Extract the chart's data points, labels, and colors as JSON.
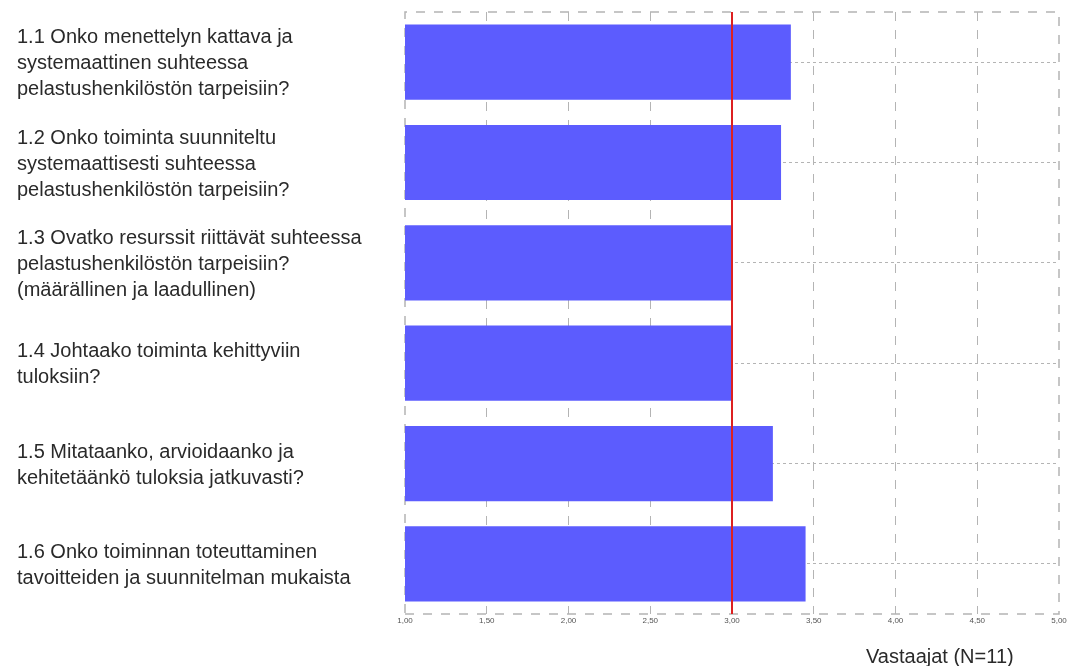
{
  "chart_data": {
    "type": "bar",
    "orientation": "horizontal",
    "categories": [
      "1.1 Onko menettelyn kattava ja systemaattinen suhteessa pelastushenkilöstön tarpeisiin?",
      "1.2 Onko toiminta suunniteltu systemaattisesti suhteessa pelastushenkilöstön tarpeisiin?",
      "1.3 Ovatko resurssit riittävät suhteessa pelastushenkilöstön tarpeisiin? (määrällinen ja laadullinen)",
      "1.4 Johtaako toiminta kehittyviin tuloksiin?",
      "1.5 Mitataanko, arvioidaanko ja kehitetäänkö tuloksia jatkuvasti?",
      "1.6 Onko toiminnan toteuttaminen tavoitteiden ja suunnitelman mukaista"
    ],
    "values": [
      3.36,
      3.3,
      3,
      3,
      3.25,
      3.45
    ],
    "color": "#5c5cfe",
    "xlim": [
      1,
      5
    ],
    "xticks": [
      {
        "value": 1,
        "label": "1,00"
      },
      {
        "value": 1.5,
        "label": "1,50"
      },
      {
        "value": 2,
        "label": "2,00"
      },
      {
        "value": 2.5,
        "label": "2,50"
      },
      {
        "value": 3,
        "label": "3,00"
      },
      {
        "value": 3.5,
        "label": "3,50"
      },
      {
        "value": 4,
        "label": "4,00"
      },
      {
        "value": 4.5,
        "label": "4,50"
      },
      {
        "value": 5,
        "label": "5,00"
      }
    ],
    "xlabel": "Vastaajat (N=11)",
    "ref_lines": [
      {
        "axis": "x",
        "value": 3,
        "color": "#dd2020"
      }
    ],
    "grid": true
  }
}
